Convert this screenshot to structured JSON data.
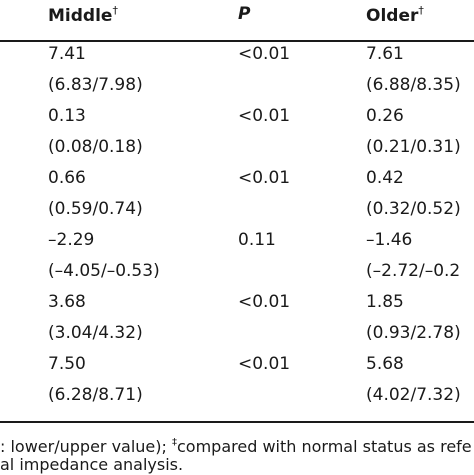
{
  "header": {
    "middle": "Middle",
    "middle_mark": "†",
    "p": "P",
    "older": "Older",
    "older_mark": "†"
  },
  "rows": [
    {
      "middle": "7.41",
      "middle_range": "(6.83/7.98)",
      "p": "<0.01",
      "older": "7.61",
      "older_range": "(6.88/8.35)"
    },
    {
      "middle": "0.13",
      "middle_range": "(0.08/0.18)",
      "p": "<0.01",
      "older": "0.26",
      "older_range": "(0.21/0.31)"
    },
    {
      "middle": "0.66",
      "middle_range": "(0.59/0.74)",
      "p": "<0.01",
      "older": "0.42",
      "older_range": "(0.32/0.52)"
    },
    {
      "middle": "–2.29",
      "middle_range": "(–4.05/–0.53)",
      "p": "0.11",
      "older": "–1.46",
      "older_range": "(–2.72/–0.2"
    },
    {
      "middle": "3.68",
      "middle_range": "(3.04/4.32)",
      "p": "<0.01",
      "older": "1.85",
      "older_range": "(0.93/2.78)"
    },
    {
      "middle": "7.50",
      "middle_range": "(6.28/8.71)",
      "p": "<0.01",
      "older": "5.68",
      "older_range": "(4.02/7.32)"
    }
  ],
  "footnote": {
    "line1_a": ": lower/upper value); ",
    "line1_mark": "‡",
    "line1_b": "compared with normal status as refe",
    "line2": "al impedance analysis."
  }
}
